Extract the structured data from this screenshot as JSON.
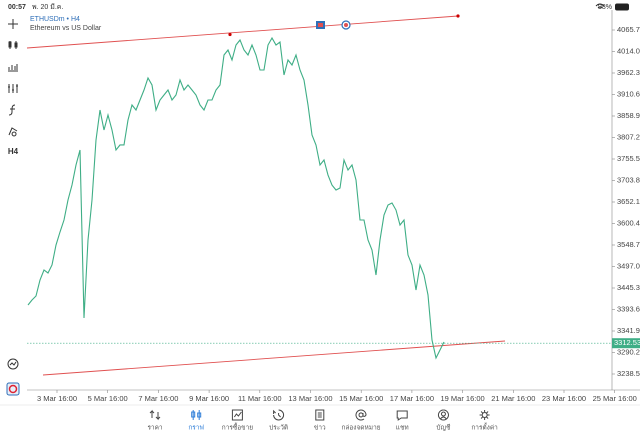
{
  "status_bar": {
    "time": "00:57",
    "date": "พ. 20 มี.ค.",
    "battery": "98%"
  },
  "symbol": {
    "name": "ETHUSDm • H4",
    "description": "Ethereum vs US Dollar"
  },
  "toolbar": {
    "timeframe": "H4"
  },
  "chart": {
    "price_ticks": [
      "4065.70",
      "4014.00",
      "3962.30",
      "3910.60",
      "3858.90",
      "3807.20",
      "3755.50",
      "3703.80",
      "3652.10",
      "3600.40",
      "3548.70",
      "3497.00",
      "3445.30",
      "3393.60",
      "3341.90",
      "3290.20",
      "3238.50"
    ],
    "current_price": "3312.53",
    "time_ticks": [
      "3 Mar 16:00",
      "5 Mar 16:00",
      "7 Mar 16:00",
      "9 Mar 16:00",
      "11 Mar 16:00",
      "13 Mar 16:00",
      "15 Mar 16:00",
      "17 Mar 16:00",
      "19 Mar 16:00",
      "21 Mar 16:00",
      "23 Mar 16:00",
      "25 Mar 16:00"
    ],
    "line_color": "#3fae86",
    "prices": [
      3404.4,
      3416.4,
      3426.0,
      3464.5,
      3488.6,
      3481.4,
      3500.6,
      3548.6,
      3579.9,
      3608.8,
      3656.9,
      3692.9,
      3741.1,
      3777.1,
      3373.1,
      3560.7,
      3656.9,
      3801.2,
      3873.3,
      3825.2,
      3861.3,
      3825.2,
      3777.1,
      3789.2,
      3789.2,
      3849.3,
      3885.4,
      3873.3,
      3897.4,
      3921.4,
      3950.3,
      3933.5,
      3873.3,
      3897.4,
      3909.4,
      3921.4,
      3897.4,
      3909.4,
      3945.5,
      3921.4,
      3933.5,
      3921.4,
      3909.4,
      3885.4,
      3873.3,
      3897.4,
      3897.4,
      3921.4,
      3933.5,
      4005.6,
      4017.6,
      3993.6,
      4029.6,
      4041.7,
      4017.6,
      4005.6,
      4029.6,
      4005.6,
      3969.5,
      3969.5,
      4029.6,
      4046.5,
      4029.6,
      4036.8,
      3957.5,
      3993.6,
      3981.5,
      4005.6,
      3969.5,
      3945.5,
      3885.4,
      3813.2,
      3789.2,
      3741.1,
      3753.1,
      3716.9,
      3692.9,
      3680.9,
      3685.7,
      3753.1,
      3729.0,
      3741.1,
      3705.0,
      3608.8,
      3608.8,
      3560.7,
      3536.7,
      3476.6,
      3560.7,
      3620.8,
      3644.9,
      3649.7,
      3632.8,
      3596.8,
      3608.8,
      3524.6,
      3500.6,
      3440.5,
      3500.6,
      3476.6,
      3428.5,
      3320.2,
      3277.0,
      3296.2,
      3315.4
    ]
  },
  "tabs": [
    "ราคา",
    "กราฟ",
    "การซื้อขาย",
    "ประวัติ",
    "ข่าว",
    "กล่องจดหมาย",
    "แชท",
    "บัญชี",
    "การตั้งค่า"
  ],
  "active_tab": 1
}
